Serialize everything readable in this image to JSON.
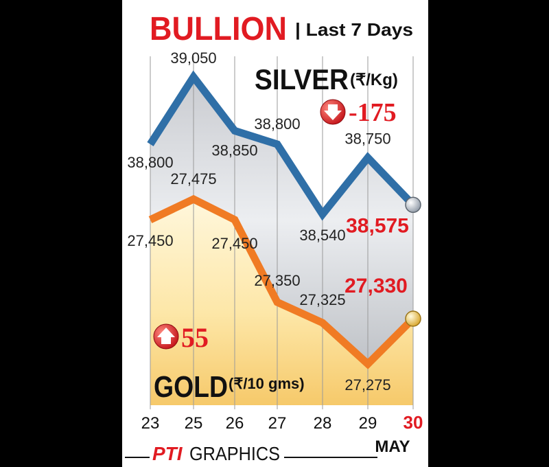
{
  "header": {
    "title": "BULLION",
    "subtitle": "| Last 7 Days"
  },
  "footer": {
    "brand_logo": "PTI",
    "brand_text": "GRAPHICS"
  },
  "colors": {
    "title_red": "#e11b22",
    "silver_line": "#2f6fa7",
    "gold_line": "#f07b24",
    "highlight_red": "#e11b22",
    "background": "#ffffff"
  },
  "chart_data": {
    "type": "line",
    "x": [
      "23",
      "25",
      "26",
      "27",
      "28",
      "29",
      "30"
    ],
    "x_extra_label": "MAY",
    "series": [
      {
        "name": "SILVER",
        "unit": "(₹/Kg)",
        "values": [
          38800,
          39050,
          38850,
          38800,
          38540,
          38750,
          38575
        ],
        "value_labels": [
          "38,800",
          "39,050",
          "38,850",
          "38,800",
          "38,540",
          "38,750",
          "38,575"
        ],
        "change": "-175",
        "change_direction": "down"
      },
      {
        "name": "GOLD",
        "unit": "(₹/10 gms)",
        "values": [
          27450,
          27475,
          27450,
          27350,
          27325,
          27275,
          27330
        ],
        "value_labels": [
          "27,450",
          "27,475",
          "27,450",
          "27,350",
          "27,325",
          "27,275",
          "27,330"
        ],
        "change": "55",
        "change_direction": "up"
      }
    ],
    "grid": "vertical"
  }
}
